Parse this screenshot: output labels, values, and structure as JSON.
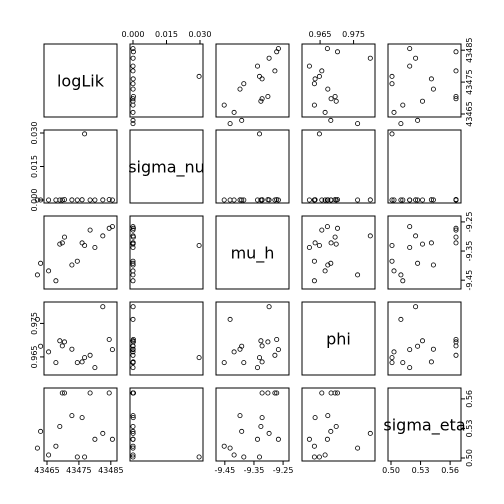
{
  "chart_data": {
    "type": "scatter",
    "variables": [
      {
        "name": "logLik",
        "range": [
          43465,
          43486
        ],
        "ticks": [
          43465,
          43475,
          43485
        ],
        "tick_labels": [
          "43465",
          "43475",
          "43485"
        ]
      },
      {
        "name": "sigma_nu",
        "range": [
          0.0,
          0.03
        ],
        "ticks": [
          0.0,
          0.015,
          0.03
        ],
        "tick_labels": [
          "0.000",
          "0.015",
          "0.030"
        ]
      },
      {
        "name": "mu_h",
        "range": [
          -9.47,
          -9.24
        ],
        "ticks": [
          -9.45,
          -9.35,
          -9.25
        ],
        "tick_labels": [
          "-9.45",
          "-9.35",
          "-9.25"
        ]
      },
      {
        "name": "phi",
        "range": [
          0.9605,
          0.9805
        ],
        "ticks": [
          0.965,
          0.975
        ],
        "tick_labels": [
          "0.965",
          "0.975"
        ]
      },
      {
        "name": "sigma_eta",
        "range": [
          0.5,
          0.568
        ],
        "ticks": [
          0.5,
          0.53,
          0.56
        ],
        "tick_labels": [
          "0.50",
          "0.53",
          "0.56"
        ]
      }
    ],
    "observations": [
      {
        "logLik": 43465.5,
        "sigma_nu": 0.0,
        "mu_h": -9.418,
        "phi": 0.9665,
        "sigma_eta": 0.503
      },
      {
        "logLik": 43467.8,
        "sigma_nu": 0.0,
        "mu_h": -9.452,
        "phi": 0.9633,
        "sigma_eta": 0.512
      },
      {
        "logLik": 43469.0,
        "sigma_nu": 0.0,
        "mu_h": -9.326,
        "phi": 0.9698,
        "sigma_eta": 0.532
      },
      {
        "logLik": 43469.8,
        "sigma_nu": 0.0,
        "mu_h": -9.322,
        "phi": 0.9683,
        "sigma_eta": 0.566
      },
      {
        "logLik": 43470.5,
        "sigma_nu": 0.0002,
        "mu_h": -9.302,
        "phi": 0.9695,
        "sigma_eta": 0.566
      },
      {
        "logLik": 43472.8,
        "sigma_nu": 5e-05,
        "mu_h": -9.398,
        "phi": 0.9673,
        "sigma_eta": 0.543
      },
      {
        "logLik": 43474.5,
        "sigma_nu": 0.0,
        "mu_h": -9.385,
        "phi": 0.9633,
        "sigma_eta": 0.501
      },
      {
        "logLik": 43476.0,
        "sigma_nu": 0.0001,
        "mu_h": -9.322,
        "phi": 0.9635,
        "sigma_eta": 0.541
      },
      {
        "logLik": 43476.8,
        "sigma_nu": 0.0296,
        "mu_h": -9.331,
        "phi": 0.9648,
        "sigma_eta": 0.501
      },
      {
        "logLik": 43478.5,
        "sigma_nu": 0.0,
        "mu_h": -9.278,
        "phi": 0.9655,
        "sigma_eta": 0.566
      },
      {
        "logLik": 43480.0,
        "sigma_nu": 0.0,
        "mu_h": -9.338,
        "phi": 0.9618,
        "sigma_eta": 0.519
      },
      {
        "logLik": 43482.5,
        "sigma_nu": 5e-05,
        "mu_h": -9.298,
        "phi": 0.98,
        "sigma_eta": 0.525
      },
      {
        "logLik": 43484.5,
        "sigma_nu": 0.0002,
        "mu_h": -9.272,
        "phi": 0.9702,
        "sigma_eta": 0.566
      },
      {
        "logLik": 43485.5,
        "sigma_nu": 0.0,
        "mu_h": -9.266,
        "phi": 0.9672,
        "sigma_eta": 0.519
      },
      {
        "logLik": 43463.0,
        "sigma_nu": 0.0,
        "mu_h": -9.392,
        "phi": 0.9682,
        "sigma_eta": 0.527
      },
      {
        "logLik": 43462.0,
        "sigma_nu": 0.0,
        "mu_h": -9.432,
        "phi": 0.9762,
        "sigma_eta": 0.51
      }
    ],
    "grid": false,
    "legend": "none"
  }
}
